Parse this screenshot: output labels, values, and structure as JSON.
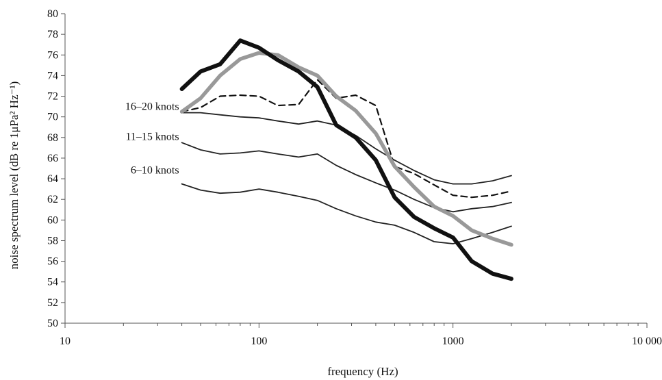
{
  "chart_data": {
    "type": "line",
    "xlabel": "frequency (Hz)",
    "ylabel": "noise spectrum level (dB re 1μPa² Hz⁻¹)",
    "xscale": "log",
    "xlim": [
      10,
      10000
    ],
    "ylim": [
      50,
      80
    ],
    "xticks": [
      10,
      100,
      1000,
      10000
    ],
    "xtick_labels": [
      "10",
      "100",
      "1000",
      "10 000"
    ],
    "yticks": [
      50,
      52,
      54,
      56,
      58,
      60,
      62,
      64,
      66,
      68,
      70,
      72,
      74,
      76,
      78,
      80
    ],
    "grid": false,
    "series": [
      {
        "name": "16–20 knots",
        "style": "thin-solid",
        "color": "#222222",
        "x": [
          40,
          50,
          63,
          80,
          100,
          125,
          160,
          200,
          250,
          315,
          400,
          500,
          630,
          800,
          1000,
          1250,
          1600,
          2000
        ],
        "y": [
          70.4,
          70.4,
          70.2,
          70.0,
          69.9,
          69.6,
          69.3,
          69.6,
          69.2,
          68.2,
          66.9,
          65.8,
          64.8,
          63.9,
          63.5,
          63.5,
          63.8,
          64.3
        ]
      },
      {
        "name": "11–15 knots",
        "style": "thin-solid",
        "color": "#222222",
        "x": [
          40,
          50,
          63,
          80,
          100,
          125,
          160,
          200,
          250,
          315,
          400,
          500,
          630,
          800,
          1000,
          1250,
          1600,
          2000
        ],
        "y": [
          67.5,
          66.8,
          66.4,
          66.5,
          66.7,
          66.4,
          66.1,
          66.4,
          65.3,
          64.4,
          63.6,
          62.9,
          62.0,
          61.2,
          60.8,
          61.1,
          61.3,
          61.7
        ]
      },
      {
        "name": "6–10 knots",
        "style": "thin-solid",
        "color": "#222222",
        "x": [
          40,
          50,
          63,
          80,
          100,
          125,
          160,
          200,
          250,
          315,
          400,
          500,
          630,
          800,
          1000,
          1250,
          1600,
          2000
        ],
        "y": [
          63.5,
          62.9,
          62.6,
          62.7,
          63.0,
          62.7,
          62.3,
          61.9,
          61.1,
          60.4,
          59.8,
          59.5,
          58.8,
          57.9,
          57.7,
          58.2,
          58.8,
          59.4
        ]
      },
      {
        "style": "dashed",
        "color": "#111111",
        "x": [
          40,
          50,
          63,
          80,
          100,
          125,
          160,
          200,
          250,
          315,
          400,
          500,
          630,
          800,
          1000,
          1250,
          1600,
          2000
        ],
        "y": [
          70.5,
          70.9,
          72.0,
          72.1,
          72.0,
          71.1,
          71.2,
          73.6,
          71.8,
          72.1,
          71.1,
          65.2,
          64.5,
          63.4,
          62.4,
          62.2,
          62.4,
          62.8
        ]
      },
      {
        "style": "thick-gray",
        "color": "#999999",
        "x": [
          40,
          50,
          63,
          80,
          100,
          125,
          160,
          200,
          250,
          315,
          400,
          500,
          630,
          800,
          1000,
          1250,
          1600,
          2000
        ],
        "y": [
          70.5,
          71.8,
          74.0,
          75.6,
          76.2,
          76.0,
          74.8,
          74.0,
          72.0,
          70.6,
          68.4,
          65.2,
          63.2,
          61.3,
          60.4,
          59.0,
          58.2,
          57.6
        ]
      },
      {
        "style": "thick-black",
        "color": "#111111",
        "x": [
          40,
          50,
          63,
          80,
          100,
          125,
          160,
          200,
          250,
          315,
          400,
          500,
          630,
          800,
          1000,
          1250,
          1600,
          2000
        ],
        "y": [
          72.7,
          74.4,
          75.1,
          77.4,
          76.7,
          75.5,
          74.4,
          72.9,
          69.2,
          68.0,
          65.8,
          62.2,
          60.3,
          59.2,
          58.3,
          56.0,
          54.8,
          54.3
        ]
      }
    ]
  }
}
